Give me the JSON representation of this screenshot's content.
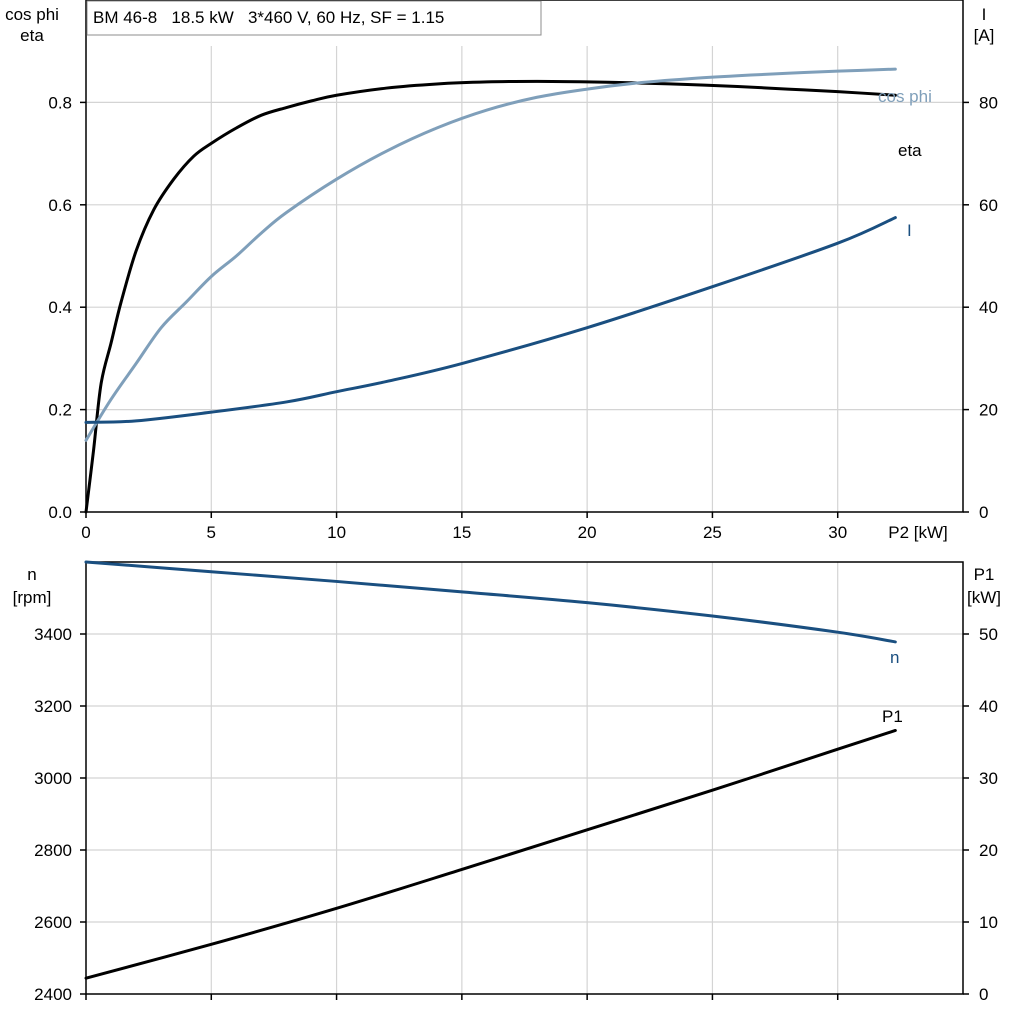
{
  "chart_data": [
    {
      "type": "line",
      "title": "BM 46-8   18.5 kW   3*460 V, 60 Hz, SF = 1.15",
      "xlabel": "P2 [kW]",
      "xlim": [
        0,
        35
      ],
      "xticks": [
        0,
        5,
        10,
        15,
        20,
        25,
        30
      ],
      "ylabel_left": [
        "cos phi",
        "eta"
      ],
      "ylim_left": [
        0,
        1.0
      ],
      "yticks_left": [
        0.0,
        0.2,
        0.4,
        0.6,
        0.8
      ],
      "ylabel_right": [
        "I",
        "[A]"
      ],
      "ylim_right": [
        0,
        100
      ],
      "yticks_right": [
        0,
        20,
        40,
        60,
        80
      ],
      "grid": true,
      "series": [
        {
          "name": "eta",
          "axis": "left",
          "color": "#000000",
          "x": [
            0,
            0.3,
            0.6,
            1,
            1.4,
            2,
            2.7,
            3.5,
            4.3,
            5,
            6,
            7,
            8,
            9,
            10,
            12,
            14,
            16,
            18,
            20,
            22,
            24,
            26,
            28,
            30,
            32.3
          ],
          "y": [
            0,
            0.12,
            0.25,
            0.33,
            0.41,
            0.51,
            0.59,
            0.65,
            0.695,
            0.72,
            0.75,
            0.775,
            0.79,
            0.803,
            0.814,
            0.828,
            0.836,
            0.84,
            0.841,
            0.84,
            0.838,
            0.835,
            0.831,
            0.826,
            0.821,
            0.814
          ]
        },
        {
          "name": "cos phi",
          "axis": "left",
          "color": "#7f9fba",
          "x": [
            0,
            1,
            2,
            3,
            4,
            5,
            6,
            7,
            8,
            10,
            12,
            14,
            16,
            18,
            20,
            22,
            24,
            26,
            28,
            30,
            32.3
          ],
          "y": [
            0.14,
            0.22,
            0.29,
            0.36,
            0.41,
            0.46,
            0.5,
            0.545,
            0.585,
            0.65,
            0.705,
            0.75,
            0.785,
            0.81,
            0.826,
            0.838,
            0.846,
            0.852,
            0.857,
            0.861,
            0.865
          ]
        },
        {
          "name": "I",
          "axis": "right",
          "color": "#1a4f80",
          "x": [
            0,
            2,
            5,
            8,
            10,
            12,
            15,
            20,
            25,
            30,
            32.3
          ],
          "y": [
            17.5,
            17.8,
            19.5,
            21.5,
            23.5,
            25.5,
            29,
            36,
            44,
            52.5,
            57.5
          ]
        }
      ]
    },
    {
      "type": "line",
      "xlim": [
        0,
        35
      ],
      "xticks": [
        0,
        5,
        10,
        15,
        20,
        25,
        30
      ],
      "ylabel_left": [
        "n",
        "[rpm]"
      ],
      "ylim_left": [
        2400,
        3600
      ],
      "yticks_left": [
        2400,
        2600,
        2800,
        3000,
        3200,
        3400
      ],
      "ylabel_right": [
        "P1",
        "[kW]"
      ],
      "ylim_right": [
        0,
        60
      ],
      "yticks_right": [
        0,
        10,
        20,
        30,
        40,
        50
      ],
      "grid": true,
      "series": [
        {
          "name": "n",
          "axis": "left",
          "color": "#1a4f80",
          "x": [
            0,
            5,
            10,
            15,
            20,
            25,
            30,
            32.3
          ],
          "y": [
            3600,
            3573,
            3546,
            3517,
            3487,
            3450,
            3405,
            3378
          ]
        },
        {
          "name": "P1",
          "axis": "right",
          "color": "#000000",
          "x": [
            0,
            5,
            10,
            15,
            20,
            25,
            30,
            32.3
          ],
          "y": [
            2.2,
            6.9,
            11.9,
            17.3,
            22.8,
            28.3,
            34,
            36.6
          ]
        }
      ]
    }
  ]
}
